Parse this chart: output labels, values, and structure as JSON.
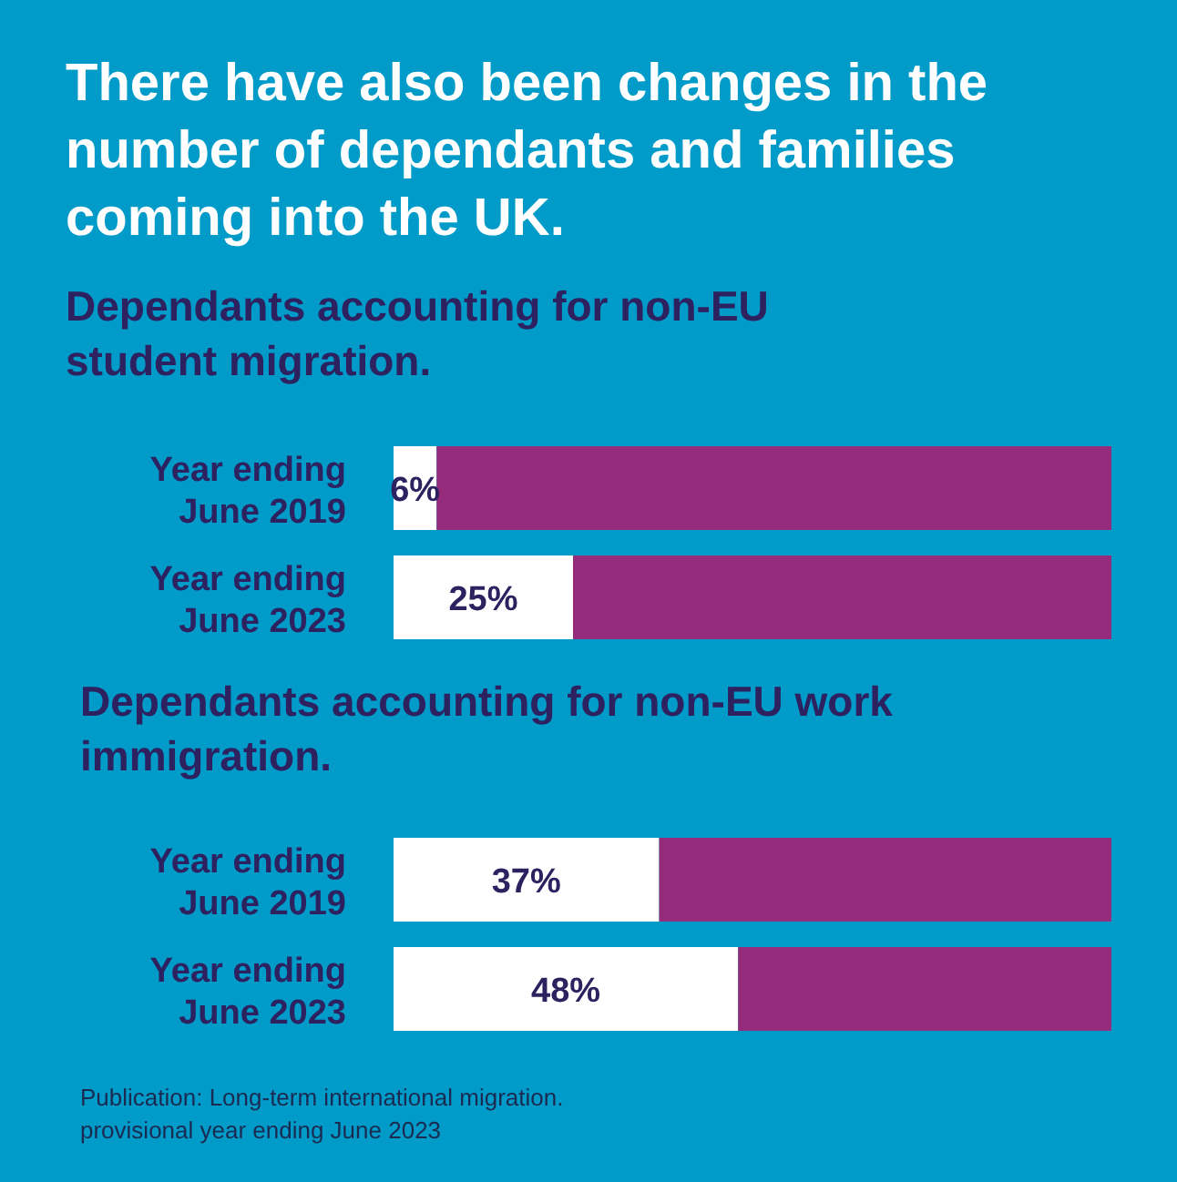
{
  "chart_data": [
    {
      "type": "bar",
      "title": "There have also been changes in the number of dependants and families coming into the UK.",
      "subtitle": "Dependants accounting for non-EU student migration.",
      "orientation": "horizontal",
      "stacked": true,
      "categories": [
        "Year ending June 2019",
        "Year ending June 2023"
      ],
      "xlim": [
        0,
        100
      ],
      "tick_labels": "y",
      "series": [
        {
          "color": "#ffffff",
          "values": [
            6,
            25
          ],
          "value_labels": [
            "6%",
            "25%"
          ]
        },
        {
          "color": "#952b7b",
          "values": [
            94,
            75
          ]
        }
      ]
    },
    {
      "type": "bar",
      "title": "Dependants accounting for non-EU work immigration.",
      "orientation": "horizontal",
      "stacked": true,
      "categories": [
        "Year ending June 2019",
        "Year ending June 2023"
      ],
      "xlim": [
        0,
        100
      ],
      "tick_labels": "y",
      "series": [
        {
          "color": "#ffffff",
          "values": [
            37,
            48
          ],
          "value_labels": [
            "37%",
            "48%"
          ]
        },
        {
          "color": "#952b7b",
          "values": [
            63,
            52
          ]
        }
      ],
      "annotations": [
        "Publication: Long-term international migration.",
        "provisional year ending June 2023"
      ]
    }
  ]
}
